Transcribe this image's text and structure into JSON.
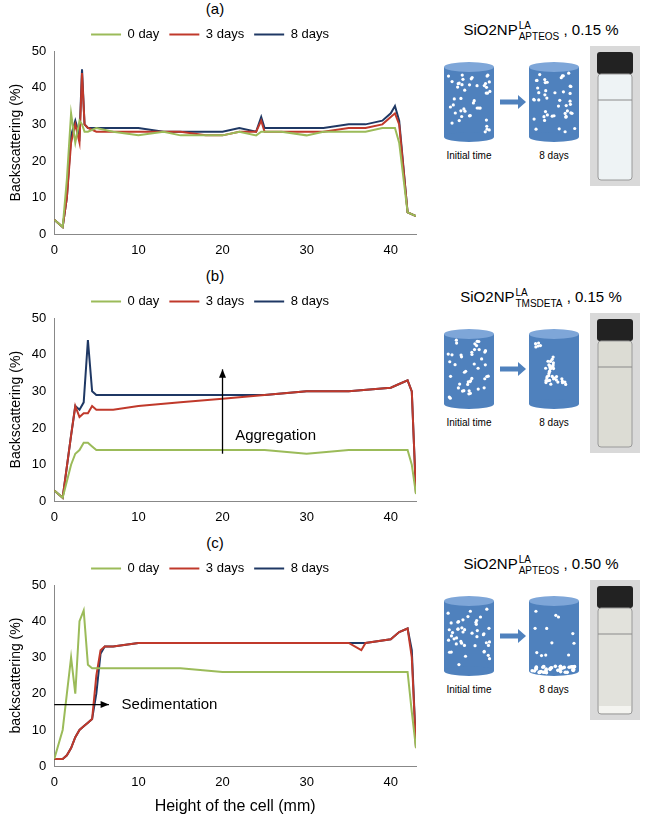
{
  "chart_data": [
    {
      "type": "line",
      "panel": "(a)",
      "title": {
        "text": "SiO2NP",
        "superscript": "LA",
        "subscript": "APTEOS",
        "suffix": " , 0.15 %"
      },
      "y_label": "Backscattering (%)",
      "x": [
        0,
        1,
        1.5,
        2,
        2.5,
        3,
        3.3,
        3.6,
        4,
        5,
        7,
        10,
        13,
        15,
        18,
        20,
        22,
        24,
        24.6,
        25,
        27,
        30,
        32,
        35,
        37,
        39,
        40,
        40.5,
        41,
        42,
        43
      ],
      "series": [
        {
          "name": "0 day",
          "color": "#9bbb59",
          "values": [
            4,
            2,
            15,
            33,
            25,
            31,
            30,
            28,
            28,
            29,
            28,
            27,
            28,
            27,
            27,
            27,
            28,
            27,
            28,
            28,
            28,
            27,
            28,
            28,
            28,
            29,
            29,
            29,
            25,
            6,
            5
          ]
        },
        {
          "name": "3 days",
          "color": "#c0392b",
          "values": [
            4,
            2,
            10,
            25,
            30,
            25,
            44,
            30,
            29,
            28,
            28,
            28,
            28,
            28,
            27,
            27,
            28,
            28,
            31,
            28,
            28,
            28,
            28,
            29,
            29,
            30,
            32,
            33,
            30,
            6,
            5
          ]
        },
        {
          "name": "8 days",
          "color": "#1f3864",
          "values": [
            4,
            2,
            10,
            27,
            31,
            27,
            45,
            30,
            29,
            29,
            29,
            29,
            28,
            28,
            28,
            28,
            29,
            28,
            32,
            29,
            29,
            29,
            29,
            30,
            30,
            31,
            33,
            35,
            31,
            6,
            5
          ]
        }
      ],
      "xlim": [
        0,
        43
      ],
      "xticks": [
        0,
        10,
        20,
        30,
        40
      ],
      "ylim": [
        0,
        50
      ],
      "yticks": [
        0,
        10,
        20,
        30,
        40,
        50
      ],
      "legend": "top",
      "grid": false,
      "schematic": {
        "before": "Initial time",
        "after": "8 days"
      }
    },
    {
      "type": "line",
      "panel": "(b)",
      "title": {
        "text": "SiO2NP",
        "superscript": "LA",
        "subscript": "TMSDETA",
        "suffix": " , 0.15 %"
      },
      "y_label": "Backscattering (%)",
      "x": [
        0,
        1,
        2,
        2.5,
        3,
        3.5,
        4,
        4.5,
        5,
        7,
        10,
        15,
        20,
        25,
        30,
        35,
        40,
        41,
        42,
        42.5,
        43
      ],
      "series": [
        {
          "name": "0 day",
          "color": "#9bbb59",
          "values": [
            3,
            1,
            10,
            13,
            14,
            16,
            16,
            15,
            14,
            14,
            14,
            14,
            14,
            14,
            13,
            14,
            14,
            14,
            14,
            10,
            2
          ]
        },
        {
          "name": "3 days",
          "color": "#c0392b",
          "values": [
            3,
            1,
            18,
            26,
            23,
            24,
            24,
            26,
            25,
            25,
            26,
            27,
            28,
            29,
            30,
            30,
            31,
            32,
            33,
            30,
            2
          ]
        },
        {
          "name": "8 days",
          "color": "#1f3864",
          "values": [
            3,
            1,
            18,
            26,
            25,
            27,
            44,
            30,
            29,
            29,
            29,
            29,
            29,
            29,
            30,
            30,
            31,
            32,
            33,
            30,
            2
          ]
        }
      ],
      "xlim": [
        0,
        43
      ],
      "xticks": [
        0,
        10,
        20,
        30,
        40
      ],
      "ylim": [
        0,
        50
      ],
      "yticks": [
        0,
        10,
        20,
        30,
        40,
        50
      ],
      "legend": "top",
      "grid": false,
      "annotations": [
        {
          "text": "Aggregation",
          "x": 21.5,
          "y": 18,
          "arrow_from": [
            20,
            13
          ],
          "arrow_to": [
            20,
            36
          ]
        }
      ],
      "schematic": {
        "before": "Initial time",
        "after": "8 days"
      }
    },
    {
      "type": "line",
      "panel": "(c)",
      "title": {
        "text": "SiO2NP",
        "superscript": "LA",
        "subscript": "APTEOS",
        "suffix": " , 0.50 %"
      },
      "y_label": "backscattering (%)",
      "x_label": "Height of the cell (mm)",
      "x": [
        0,
        1,
        1.5,
        2,
        2.5,
        3,
        3.5,
        4,
        4.5,
        5,
        5.5,
        6,
        7,
        10,
        15,
        20,
        25,
        30,
        35,
        36.5,
        37,
        40,
        41,
        42,
        42.5,
        43
      ],
      "series": [
        {
          "name": "0 day",
          "color": "#9bbb59",
          "values": [
            2,
            10,
            20,
            30,
            20,
            40,
            43,
            28,
            27,
            27,
            27,
            27,
            27,
            27,
            27,
            26,
            26,
            26,
            26,
            26,
            26,
            26,
            26,
            26,
            15,
            5
          ]
        },
        {
          "name": "3 days",
          "color": "#c0392b",
          "values": [
            2,
            2,
            3,
            5,
            8,
            10,
            11,
            12,
            13,
            25,
            32,
            33,
            33,
            34,
            34,
            34,
            34,
            34,
            34,
            32,
            34,
            35,
            37,
            38,
            30,
            5
          ]
        },
        {
          "name": "8 days",
          "color": "#1f3864",
          "values": [
            2,
            2,
            3,
            5,
            8,
            10,
            11,
            12,
            13,
            20,
            31,
            33,
            33,
            34,
            34,
            34,
            34,
            34,
            34,
            34,
            34,
            35,
            37,
            38,
            32,
            5
          ]
        }
      ],
      "xlim": [
        0,
        43
      ],
      "xticks": [
        0,
        10,
        20,
        30,
        40
      ],
      "ylim": [
        0,
        50
      ],
      "yticks": [
        0,
        10,
        20,
        30,
        40,
        50
      ],
      "legend": "top",
      "grid": false,
      "annotations": [
        {
          "text": "Sedimentation",
          "x": 8,
          "y": 17,
          "arrow_from": [
            0,
            17
          ],
          "arrow_to": [
            6.5,
            17
          ]
        }
      ],
      "schematic": {
        "before": "Initial time",
        "after": "8 days"
      }
    }
  ]
}
